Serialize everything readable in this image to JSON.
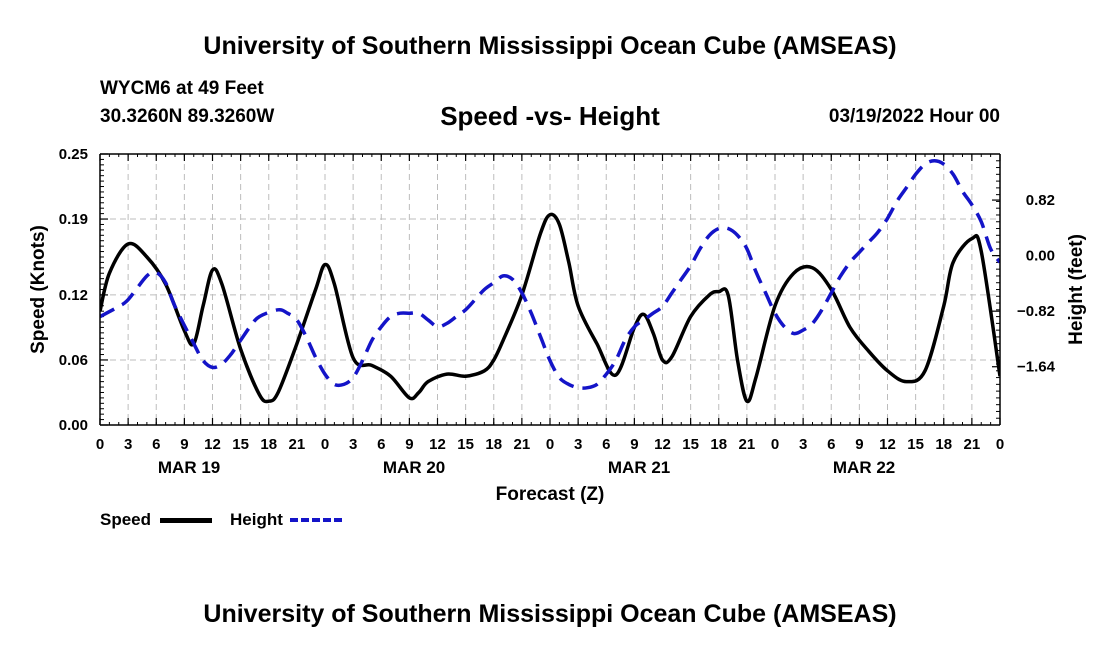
{
  "header": {
    "title_top": "University of Southern Mississippi Ocean Cube (AMSEAS)",
    "title_bottom": "University of Southern Mississippi Ocean Cube (AMSEAS)",
    "station": "WYCM6 at 49 Feet",
    "coords": "30.3260N  89.3260W",
    "chart_title": "Speed -vs- Height",
    "date": "03/19/2022 Hour 00"
  },
  "legend": {
    "speed_label": "Speed",
    "height_label": "Height",
    "speed_color": "#000000",
    "height_color": "#1414c8"
  },
  "chart_data": {
    "type": "line",
    "title": "Speed -vs- Height",
    "xlabel": "Forecast (Z)",
    "ylabel": "Speed (Knots)",
    "y2label": "Height (feet)",
    "x_hours_range": [
      0,
      96
    ],
    "xticks": [
      "0",
      "3",
      "6",
      "9",
      "12",
      "15",
      "18",
      "21",
      "0",
      "3",
      "6",
      "9",
      "12",
      "15",
      "18",
      "21",
      "0",
      "3",
      "6",
      "9",
      "12",
      "15",
      "18",
      "21",
      "0",
      "3",
      "6",
      "9",
      "12",
      "15",
      "18",
      "21",
      "0"
    ],
    "day_labels": [
      {
        "label": "MAR 19",
        "hour": 9.5
      },
      {
        "label": "MAR 20",
        "hour": 33.5
      },
      {
        "label": "MAR 21",
        "hour": 57.5
      },
      {
        "label": "MAR 22",
        "hour": 81.5
      }
    ],
    "ylim": [
      0,
      0.25
    ],
    "yticks": [
      0.0,
      0.06,
      0.12,
      0.19,
      0.25
    ],
    "ytick_labels": [
      "0.00",
      "0.06",
      "0.12",
      "0.19",
      "0.25"
    ],
    "y2lim": [
      -2.5,
      1.5
    ],
    "y2ticks": [
      -1.64,
      -0.82,
      0.0,
      0.82
    ],
    "y2tick_labels": [
      "−1.64",
      "−0.82",
      "0.00",
      "0.82"
    ],
    "series": [
      {
        "name": "Speed",
        "axis": "left",
        "color": "#000000",
        "style": "solid",
        "x": [
          0,
          1,
          3,
          5,
          7,
          9,
          10,
          11,
          12,
          13,
          15,
          17,
          18,
          19,
          21,
          23,
          24,
          25,
          27,
          29,
          31,
          33,
          34,
          35,
          37,
          39,
          41,
          42,
          43,
          45,
          47,
          48,
          49,
          50,
          51,
          53,
          55,
          57,
          58,
          59,
          60,
          61,
          63,
          65,
          66,
          67,
          68,
          69,
          70,
          72,
          74,
          76,
          78,
          80,
          82,
          84,
          86,
          88,
          90,
          91,
          93,
          94,
          96
        ],
        "values": [
          0.105,
          0.14,
          0.167,
          0.155,
          0.13,
          0.087,
          0.075,
          0.11,
          0.143,
          0.13,
          0.07,
          0.028,
          0.022,
          0.03,
          0.075,
          0.125,
          0.148,
          0.13,
          0.062,
          0.055,
          0.045,
          0.025,
          0.03,
          0.04,
          0.047,
          0.045,
          0.05,
          0.06,
          0.078,
          0.12,
          0.177,
          0.194,
          0.185,
          0.15,
          0.11,
          0.075,
          0.046,
          0.09,
          0.102,
          0.085,
          0.06,
          0.063,
          0.1,
          0.12,
          0.123,
          0.12,
          0.06,
          0.022,
          0.045,
          0.11,
          0.14,
          0.145,
          0.125,
          0.09,
          0.068,
          0.05,
          0.04,
          0.05,
          0.11,
          0.15,
          0.172,
          0.16,
          0.045
        ]
      },
      {
        "name": "Height",
        "axis": "right",
        "color": "#1414c8",
        "style": "dashed",
        "x": [
          0,
          2,
          3,
          5,
          6,
          7,
          8,
          10,
          11,
          12,
          13,
          14,
          15,
          16,
          17,
          19,
          20,
          21,
          22,
          23,
          24,
          25,
          26,
          27,
          28,
          29,
          30,
          31,
          32,
          33,
          34,
          35,
          36,
          37,
          38,
          39,
          40,
          41,
          42,
          43,
          44,
          45,
          46,
          47,
          48,
          49,
          50,
          51,
          52,
          53,
          54,
          55,
          56,
          57,
          58,
          59,
          60,
          61,
          62,
          63,
          64,
          65,
          66,
          67,
          68,
          69,
          70,
          71,
          72,
          73,
          74,
          75,
          76,
          77,
          78,
          79,
          80,
          81,
          82,
          83,
          84,
          85,
          86,
          87,
          88,
          89,
          90,
          91,
          92,
          93,
          94,
          95,
          96
        ],
        "values": [
          -0.9,
          -0.75,
          -0.65,
          -0.3,
          -0.25,
          -0.4,
          -0.75,
          -1.3,
          -1.55,
          -1.65,
          -1.6,
          -1.45,
          -1.25,
          -1.05,
          -0.9,
          -0.8,
          -0.85,
          -0.95,
          -1.2,
          -1.5,
          -1.75,
          -1.9,
          -1.9,
          -1.8,
          -1.55,
          -1.25,
          -1.05,
          -0.9,
          -0.85,
          -0.85,
          -0.85,
          -0.95,
          -1.05,
          -1.0,
          -0.9,
          -0.8,
          -0.65,
          -0.5,
          -0.4,
          -0.3,
          -0.35,
          -0.55,
          -0.85,
          -1.2,
          -1.55,
          -1.8,
          -1.9,
          -1.95,
          -1.95,
          -1.9,
          -1.75,
          -1.55,
          -1.25,
          -1.05,
          -0.95,
          -0.85,
          -0.75,
          -0.55,
          -0.35,
          -0.15,
          0.1,
          0.3,
          0.4,
          0.4,
          0.3,
          0.1,
          -0.25,
          -0.55,
          -0.85,
          -1.05,
          -1.15,
          -1.1,
          -1.0,
          -0.8,
          -0.55,
          -0.3,
          -0.1,
          0.05,
          0.2,
          0.35,
          0.55,
          0.8,
          1.0,
          1.2,
          1.35,
          1.4,
          1.35,
          1.2,
          0.95,
          0.75,
          0.5,
          0.1,
          -0.1
        ]
      }
    ]
  }
}
